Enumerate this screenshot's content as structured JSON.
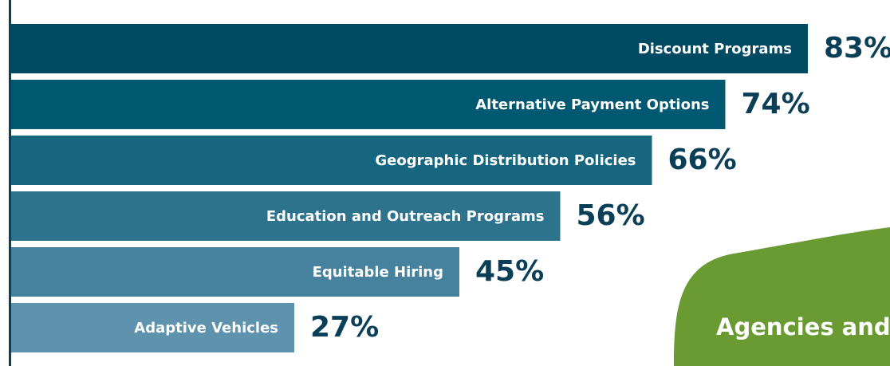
{
  "chart_data": {
    "type": "bar",
    "orientation": "horizontal",
    "categories": [
      "Discount Programs",
      "Alternative Payment Options",
      "Geographic Distribution Policies",
      "Education and Outreach Programs",
      "Equitable Hiring",
      "Adaptive Vehicles"
    ],
    "values": [
      83,
      74,
      66,
      56,
      45,
      27
    ],
    "value_labels": [
      "83%",
      "74%",
      "66%",
      "56%",
      "45%",
      "27%"
    ],
    "colors": [
      "#004a63",
      "#005871",
      "#16667f",
      "#2e738e",
      "#46829e",
      "#5f93ad"
    ],
    "annotation": "Agencies and"
  }
}
